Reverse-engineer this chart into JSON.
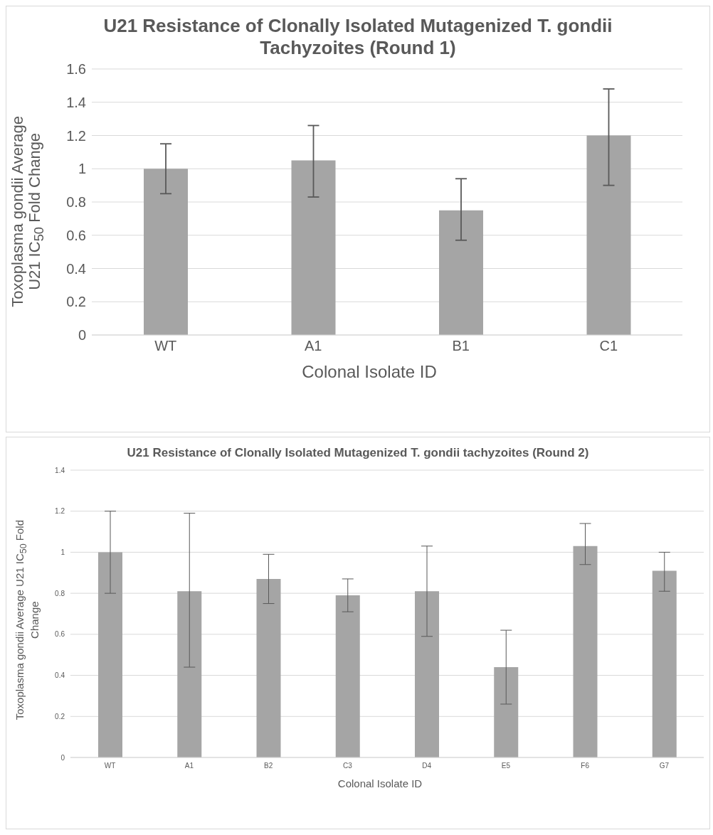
{
  "chart_data": [
    {
      "type": "bar",
      "title": "U21 Resistance of Clonally Isolated Mutagenized T. gondii Tachyzoites (Round 1)",
      "xlabel": "Colonal Isolate ID",
      "ylabel": "Toxoplasma gondii Average U21 IC$_{50}$ Fold Change",
      "categories": [
        "WT",
        "A1",
        "B1",
        "C1"
      ],
      "values": [
        1.0,
        1.05,
        0.75,
        1.2
      ],
      "errors": [
        [
          0.85,
          1.15
        ],
        [
          0.83,
          1.26
        ],
        [
          0.57,
          0.94
        ],
        [
          0.9,
          1.48
        ]
      ],
      "color": "#a5a5a5",
      "ylim": [
        0,
        1.6
      ],
      "yticks": [
        0,
        0.2,
        0.4,
        0.6,
        0.8,
        1,
        1.2,
        1.4,
        1.6
      ],
      "grid": "y"
    },
    {
      "type": "bar",
      "title": "U21 Resistance of Clonally Isolated Mutagenized T. gondii tachyzoites (Round 2)",
      "xlabel": "Colonal Isolate ID",
      "ylabel": "Toxoplasma gondii Average U21 IC$_{50}$  Fold Change",
      "categories": [
        "WT",
        "A1",
        "B2",
        "C3",
        "D4",
        "E5",
        "F6",
        "G7"
      ],
      "values": [
        1.0,
        0.81,
        0.87,
        0.79,
        0.81,
        0.44,
        1.03,
        0.91
      ],
      "errors": [
        [
          0.8,
          1.2
        ],
        [
          0.44,
          1.19
        ],
        [
          0.75,
          0.99
        ],
        [
          0.71,
          0.87
        ],
        [
          0.59,
          1.03
        ],
        [
          0.26,
          0.62
        ],
        [
          0.94,
          1.14
        ],
        [
          0.81,
          1.0
        ]
      ],
      "color": "#a5a5a5",
      "ylim": [
        0,
        1.4
      ],
      "yticks": [
        0,
        0.2,
        0.4,
        0.6,
        0.8,
        1,
        1.2,
        1.4
      ],
      "grid": "y"
    }
  ]
}
